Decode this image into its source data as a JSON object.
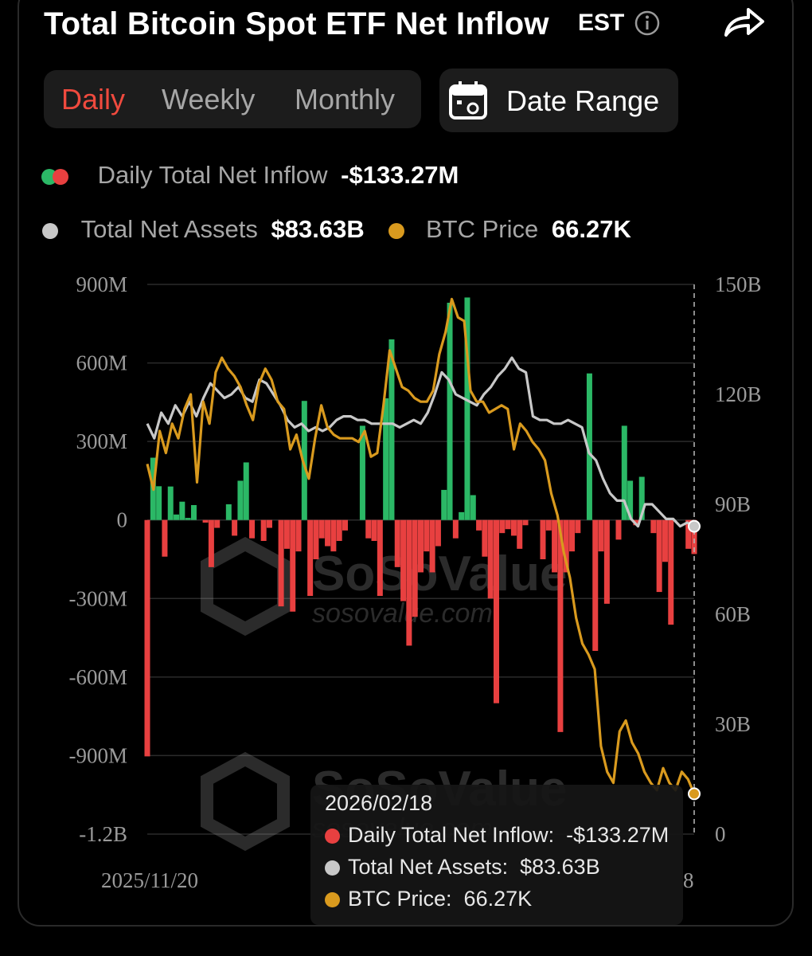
{
  "header": {
    "title": "Total Bitcoin Spot ETF Net Inflow",
    "timezone": "EST"
  },
  "tabs": [
    {
      "label": "Daily",
      "active": true
    },
    {
      "label": "Weekly",
      "active": false
    },
    {
      "label": "Monthly",
      "active": false
    }
  ],
  "date_range_label": "Date Range",
  "legend": {
    "inflow_label": "Daily Total Net Inflow",
    "inflow_value": "-$133.27M",
    "assets_label": "Total Net Assets",
    "assets_value": "$83.63B",
    "price_label": "BTC Price",
    "price_value": "66.27K"
  },
  "watermark": {
    "brand": "SoSoValue",
    "url": "sosovalue.com"
  },
  "tooltip": {
    "date": "2026/02/18",
    "rows": [
      {
        "label": "Daily Total Net Inflow:",
        "value": "-$133.27M",
        "color": "#e84040"
      },
      {
        "label": "Total Net Assets:",
        "value": "$83.63B",
        "color": "#c8c8c8"
      },
      {
        "label": "BTC Price:",
        "value": "66.27K",
        "color": "#d99a1e"
      }
    ]
  },
  "colors": {
    "positive": "#2bb866",
    "negative": "#e84040",
    "assets_line": "#c8c8c8",
    "price_line": "#d99a1e",
    "active_tab": "#f04a3e"
  },
  "chart_data": {
    "type": "bar",
    "x_first_label": "2025/11/20",
    "x_last_label_fragment": "8",
    "left_axis": {
      "ticks": [
        "900M",
        "600M",
        "300M",
        "0",
        "-300M",
        "-600M",
        "-900M",
        "-1.2B"
      ],
      "ylim": [
        -1200,
        900
      ],
      "unit": "M USD"
    },
    "right_axis": {
      "ticks": [
        "150B",
        "120B",
        "90B",
        "60B",
        "30B",
        "0"
      ],
      "ylim": [
        0,
        150
      ],
      "unit": "B USD"
    },
    "series": [
      {
        "name": "Daily Total Net Inflow",
        "type": "bar",
        "axis": "left",
        "values": [
          -903,
          238,
          129,
          -140,
          128,
          21,
          70,
          8,
          57,
          0,
          -10,
          -180,
          -30,
          0,
          60,
          -60,
          150,
          220,
          -70,
          0,
          -80,
          -30,
          0,
          -330,
          -110,
          -350,
          -120,
          455,
          -290,
          -150,
          -70,
          -100,
          -120,
          -80,
          -40,
          0,
          0,
          360,
          -70,
          -80,
          -290,
          465,
          690,
          -180,
          -310,
          -480,
          -370,
          -200,
          -120,
          -200,
          -100,
          115,
          830,
          -70,
          30,
          850,
          95,
          -40,
          -140,
          -300,
          -700,
          -50,
          -35,
          -60,
          -110,
          -20,
          0,
          0,
          -150,
          -40,
          -200,
          -810,
          -200,
          -120,
          -50,
          0,
          560,
          -500,
          -120,
          -320,
          0,
          -75,
          360,
          150,
          -20,
          165,
          0,
          -50,
          -275,
          -160,
          -400,
          0,
          0,
          -110,
          -130
        ]
      },
      {
        "name": "Total Net Assets",
        "type": "line",
        "axis": "right",
        "values": [
          112,
          108,
          115,
          112,
          117,
          114,
          118,
          114,
          119,
          123,
          121,
          119,
          120,
          122,
          119,
          118,
          124,
          123,
          120,
          117,
          113,
          111,
          112,
          110,
          111,
          110,
          111,
          113,
          114,
          114,
          113,
          113,
          112,
          112,
          112,
          112,
          111,
          112,
          113,
          112,
          115,
          120,
          126,
          124,
          120,
          119,
          118,
          117,
          120,
          122,
          125,
          127,
          130,
          127,
          126,
          114,
          113,
          113,
          112,
          112,
          113,
          112,
          111,
          104,
          102,
          97,
          93,
          91,
          91,
          86,
          84,
          90,
          90,
          88,
          86,
          86,
          84,
          85,
          84
        ]
      },
      {
        "name": "BTC Price",
        "type": "line",
        "axis": "right",
        "values": [
          101,
          94,
          110,
          104,
          112,
          108,
          116,
          120,
          96,
          118,
          112,
          126,
          130,
          127,
          125,
          122,
          117,
          113,
          123,
          127,
          124,
          118,
          116,
          105,
          109,
          102,
          97,
          108,
          117,
          111,
          109,
          108,
          108,
          108,
          107,
          110,
          103,
          104,
          117,
          132,
          127,
          122,
          121,
          119,
          118,
          118,
          121,
          131,
          137,
          146,
          141,
          140,
          121,
          118,
          118,
          115,
          116,
          117,
          116,
          105,
          112,
          110,
          107,
          105,
          102,
          93,
          87,
          77,
          70,
          59,
          52,
          49,
          45,
          24,
          17,
          14,
          28,
          31,
          25,
          22,
          17,
          14,
          12,
          18,
          14,
          12,
          17,
          15,
          11
        ]
      }
    ],
    "grid": true,
    "legend_position": "top"
  }
}
